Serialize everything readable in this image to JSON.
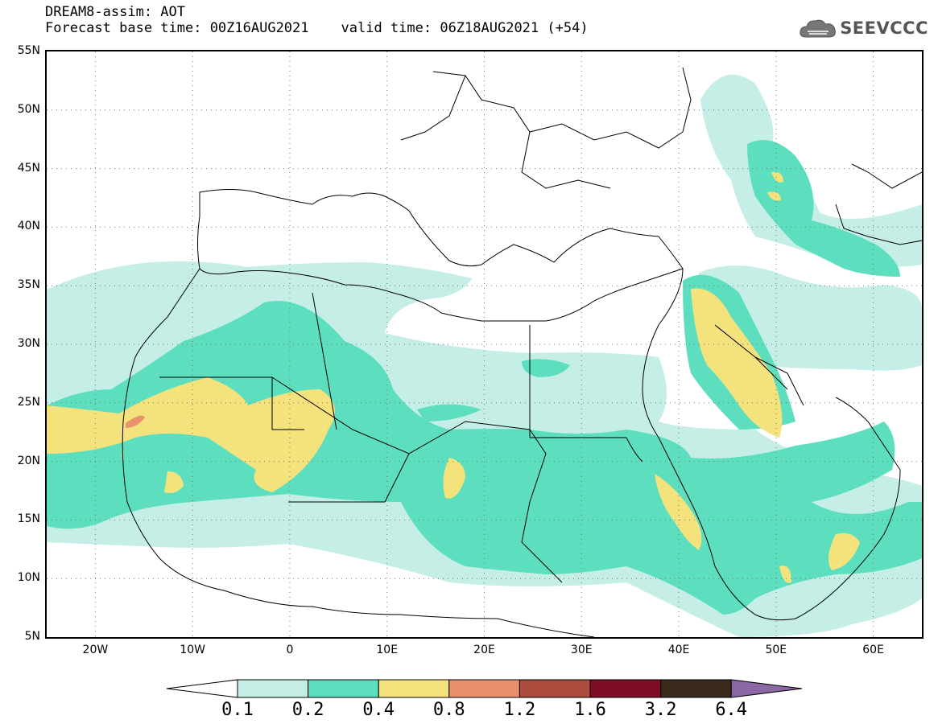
{
  "header": {
    "line1": "DREAM8-assim: AOT",
    "base_time": "Forecast base time: 00Z16AUG2021",
    "valid_time": "valid time: 06Z18AUG2021 (+54)"
  },
  "logo": {
    "text": "SEEVCCC",
    "icon": "cloud-icon"
  },
  "map": {
    "projection": "cylindrical",
    "extent": {
      "lon": [
        -25,
        65
      ],
      "lat": [
        5,
        55
      ]
    },
    "lat_ticks": [
      "55N",
      "50N",
      "45N",
      "40N",
      "35N",
      "30N",
      "25N",
      "20N",
      "15N",
      "10N",
      "5N"
    ],
    "lon_ticks": [
      "20W",
      "10W",
      "0",
      "10E",
      "20E",
      "30E",
      "40E",
      "50E",
      "60E"
    ],
    "grid": true
  },
  "legend": {
    "labels": [
      "0.1",
      "0.2",
      "0.4",
      "0.8",
      "1.2",
      "1.6",
      "3.2",
      "6.4"
    ],
    "colors": [
      "#ffffff",
      "#c5eee6",
      "#5ddfbf",
      "#f4e27d",
      "#e8916a",
      "#ad4d40",
      "#7e0d25",
      "#3b2a1c",
      "#8b68a3"
    ]
  }
}
